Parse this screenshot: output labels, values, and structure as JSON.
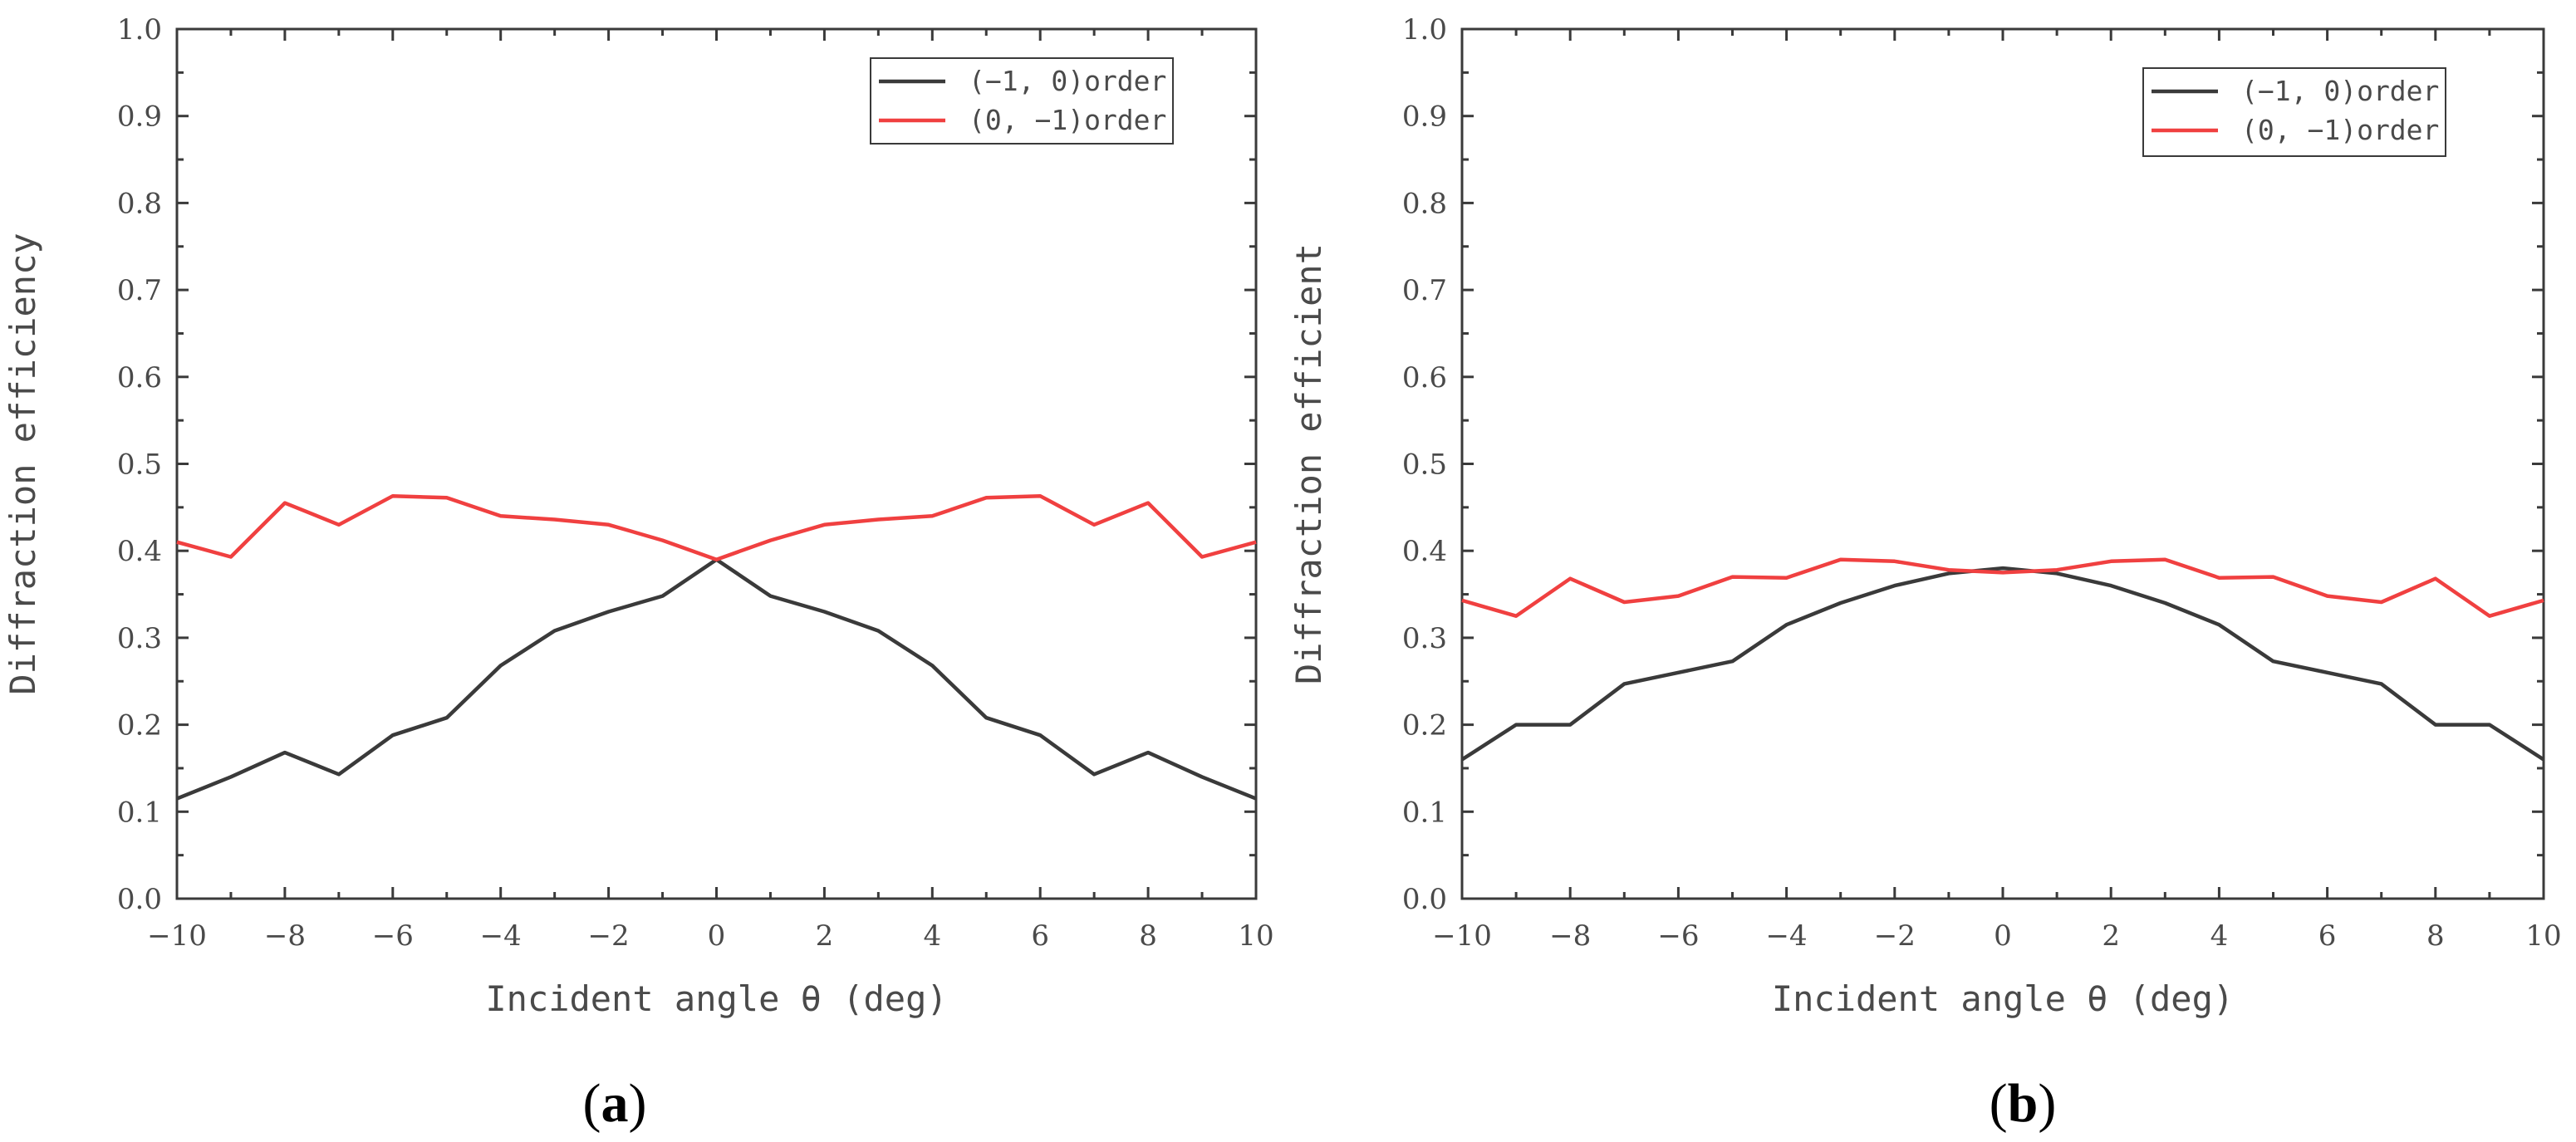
{
  "colors": {
    "series_black": "#3a3a3a",
    "series_red": "#f04040",
    "axis": "#3a3a3a",
    "text": "#4a4a4a"
  },
  "chart_data": [
    {
      "type": "line",
      "panel_label": [
        "(",
        "a",
        ")"
      ],
      "xlabel": "Incident angle θ (deg)",
      "ylabel": "Diffraction efficiency",
      "xlim": [
        -10,
        10
      ],
      "ylim": [
        0.0,
        1.0
      ],
      "xticks": [
        "−10",
        "−8",
        "−6",
        "−4",
        "−2",
        "0",
        "2",
        "4",
        "6",
        "8",
        "10"
      ],
      "xtick_values": [
        -10,
        -8,
        -6,
        -4,
        -2,
        0,
        2,
        4,
        6,
        8,
        10
      ],
      "yticks": [
        "0.0",
        "0.1",
        "0.2",
        "0.3",
        "0.4",
        "0.5",
        "0.6",
        "0.7",
        "0.8",
        "0.9",
        "1.0"
      ],
      "ytick_values": [
        0.0,
        0.1,
        0.2,
        0.3,
        0.4,
        0.5,
        0.6,
        0.7,
        0.8,
        0.9,
        1.0
      ],
      "legend_position": "top-right",
      "x": [
        -10,
        -9,
        -8,
        -7,
        -6,
        -5,
        -4,
        -3,
        -2,
        -1,
        0,
        1,
        2,
        3,
        4,
        5,
        6,
        7,
        8,
        9,
        10
      ],
      "series": [
        {
          "name": "(−1, 0)order",
          "color": "#3a3a3a",
          "values": [
            0.115,
            0.14,
            0.168,
            0.143,
            0.188,
            0.208,
            0.268,
            0.308,
            0.33,
            0.348,
            0.39,
            0.348,
            0.33,
            0.308,
            0.268,
            0.208,
            0.188,
            0.143,
            0.168,
            0.14,
            0.115
          ]
        },
        {
          "name": "(0, −1)order",
          "color": "#f04040",
          "values": [
            0.41,
            0.393,
            0.455,
            0.43,
            0.463,
            0.461,
            0.44,
            0.436,
            0.43,
            0.412,
            0.39,
            0.412,
            0.43,
            0.436,
            0.44,
            0.461,
            0.463,
            0.43,
            0.455,
            0.393,
            0.41
          ]
        }
      ]
    },
    {
      "type": "line",
      "panel_label": [
        "(",
        "b",
        ")"
      ],
      "xlabel": "Incident angle θ (deg)",
      "ylabel": "Diffraction efficient",
      "xlim": [
        -10,
        10
      ],
      "ylim": [
        0.0,
        1.0
      ],
      "xticks": [
        "−10",
        "−8",
        "−6",
        "−4",
        "−2",
        "0",
        "2",
        "4",
        "6",
        "8",
        "10"
      ],
      "xtick_values": [
        -10,
        -8,
        -6,
        -4,
        -2,
        0,
        2,
        4,
        6,
        8,
        10
      ],
      "yticks": [
        "0.0",
        "0.1",
        "0.2",
        "0.3",
        "0.4",
        "0.5",
        "0.6",
        "0.7",
        "0.8",
        "0.9",
        "1.0"
      ],
      "ytick_values": [
        0.0,
        0.1,
        0.2,
        0.3,
        0.4,
        0.5,
        0.6,
        0.7,
        0.8,
        0.9,
        1.0
      ],
      "legend_position": "top-right",
      "x": [
        -10,
        -9,
        -8,
        -7,
        -6,
        -5,
        -4,
        -3,
        -2,
        -1,
        0,
        1,
        2,
        3,
        4,
        5,
        6,
        7,
        8,
        9,
        10
      ],
      "series": [
        {
          "name": "(−1, 0)order",
          "color": "#3a3a3a",
          "values": [
            0.16,
            0.2,
            0.2,
            0.247,
            0.26,
            0.273,
            0.315,
            0.34,
            0.36,
            0.374,
            0.38,
            0.374,
            0.36,
            0.34,
            0.315,
            0.273,
            0.26,
            0.247,
            0.2,
            0.2,
            0.16
          ]
        },
        {
          "name": "(0, −1)order",
          "color": "#f04040",
          "values": [
            0.343,
            0.325,
            0.368,
            0.341,
            0.348,
            0.37,
            0.369,
            0.39,
            0.388,
            0.378,
            0.375,
            0.378,
            0.388,
            0.39,
            0.369,
            0.37,
            0.348,
            0.341,
            0.368,
            0.325,
            0.343
          ]
        }
      ]
    }
  ]
}
